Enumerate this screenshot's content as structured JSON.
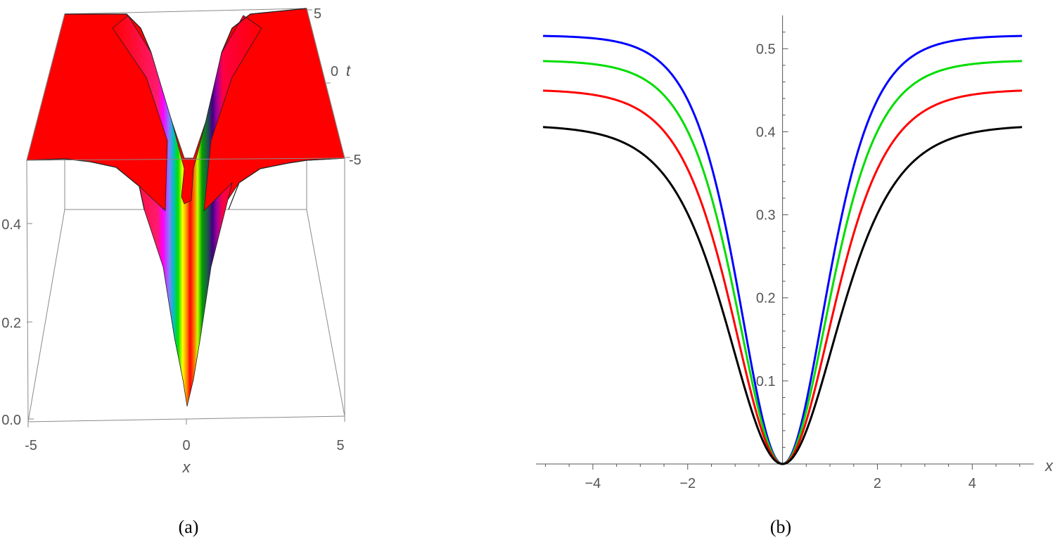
{
  "panels": {
    "a": {
      "caption": "(a)"
    },
    "b": {
      "caption": "(b)"
    }
  },
  "colors": {
    "surface_top": "#ff0000",
    "frame": "#8a8a8a",
    "axis": "#555555",
    "series": [
      "#0000ff",
      "#00dd00",
      "#ff0000",
      "#000000"
    ]
  },
  "chart_data": [
    {
      "type": "surface3d",
      "panel": "a",
      "xlabel": "x",
      "ylabel": "t",
      "zlabel": "",
      "x_ticks": [
        "-5",
        "0",
        "5"
      ],
      "t_ticks": [
        "5",
        "0",
        "-5"
      ],
      "z_ticks": [
        "0.0",
        "0.2",
        "0.4"
      ],
      "xlim": [
        -5,
        5
      ],
      "tlim": [
        -5,
        5
      ],
      "zlim": [
        0,
        0.52
      ],
      "description_colors": "hue gradient near the dip, red plateau",
      "profile": {
        "x": [
          -5,
          -4,
          -3,
          -2,
          -1.5,
          -1,
          -0.5,
          0,
          0.5,
          1,
          1.5,
          2,
          3,
          4,
          5
        ],
        "z": [
          0.52,
          0.52,
          0.51,
          0.47,
          0.42,
          0.33,
          0.17,
          0.0,
          0.17,
          0.33,
          0.42,
          0.47,
          0.51,
          0.52,
          0.52
        ]
      }
    },
    {
      "type": "line",
      "panel": "b",
      "xlabel": "x",
      "ylabel": "",
      "xlim": [
        -5.2,
        5.3
      ],
      "ylim": [
        0,
        0.54
      ],
      "x_ticks": [
        {
          "value": -4,
          "label": "−4"
        },
        {
          "value": -2,
          "label": "−2"
        },
        {
          "value": 2,
          "label": "2"
        },
        {
          "value": 4,
          "label": "4"
        }
      ],
      "y_ticks": [
        {
          "value": 0.1,
          "label": "0.1"
        },
        {
          "value": 0.2,
          "label": "0.2"
        },
        {
          "value": 0.3,
          "label": "0.3"
        },
        {
          "value": 0.4,
          "label": "0.4"
        },
        {
          "value": 0.5,
          "label": "0.5"
        }
      ],
      "series": [
        {
          "color": "#0000ff",
          "amplitude": 0.516,
          "width": 1.25
        },
        {
          "color": "#00dd00",
          "amplitude": 0.486,
          "width": 1.32
        },
        {
          "color": "#ff0000",
          "amplitude": 0.451,
          "width": 1.42
        },
        {
          "color": "#000000",
          "amplitude": 0.408,
          "width": 1.55
        }
      ],
      "model": "y = amplitude * tanh^2(x / width)"
    }
  ]
}
